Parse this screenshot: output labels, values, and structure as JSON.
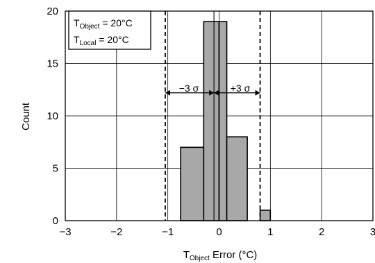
{
  "chart_data": {
    "type": "bar",
    "bins": [
      {
        "x0": -0.75,
        "x1": -0.3,
        "count": 7
      },
      {
        "x0": -0.3,
        "x1": 0.0,
        "count": 19
      },
      {
        "x0": 0.0,
        "x1": 0.15,
        "count": 19
      },
      {
        "x0": 0.15,
        "x1": 0.55,
        "count": 8
      },
      {
        "x0": 0.8,
        "x1": 1.0,
        "count": 1
      }
    ],
    "xlim": [
      -3,
      3
    ],
    "ylim": [
      0,
      20
    ],
    "xticks": [
      -3,
      -2,
      -1,
      0,
      1,
      2,
      3
    ],
    "yticks": [
      0,
      5,
      10,
      15,
      20
    ],
    "xlabel": {
      "main": "T",
      "sub": "Object",
      "rest": " Error (°C)"
    },
    "ylabel": "Count",
    "grid": true,
    "mean_line_x": -0.1,
    "sigma_lines": [
      {
        "x": -1.05,
        "label": "−3 σ"
      },
      {
        "x": 0.8,
        "label": "+3 σ"
      }
    ],
    "arrow_y": 12.2,
    "legend": {
      "placement": "top-left",
      "lines": [
        {
          "main": "T",
          "sub": "Object",
          "rest": " = 20°C"
        },
        {
          "main": "T",
          "sub": "Local",
          "rest": " = 20°C"
        }
      ]
    },
    "colors": {
      "bar_fill": "#a8a8a8",
      "bar_stroke": "#000000",
      "grid": "#000000"
    }
  }
}
